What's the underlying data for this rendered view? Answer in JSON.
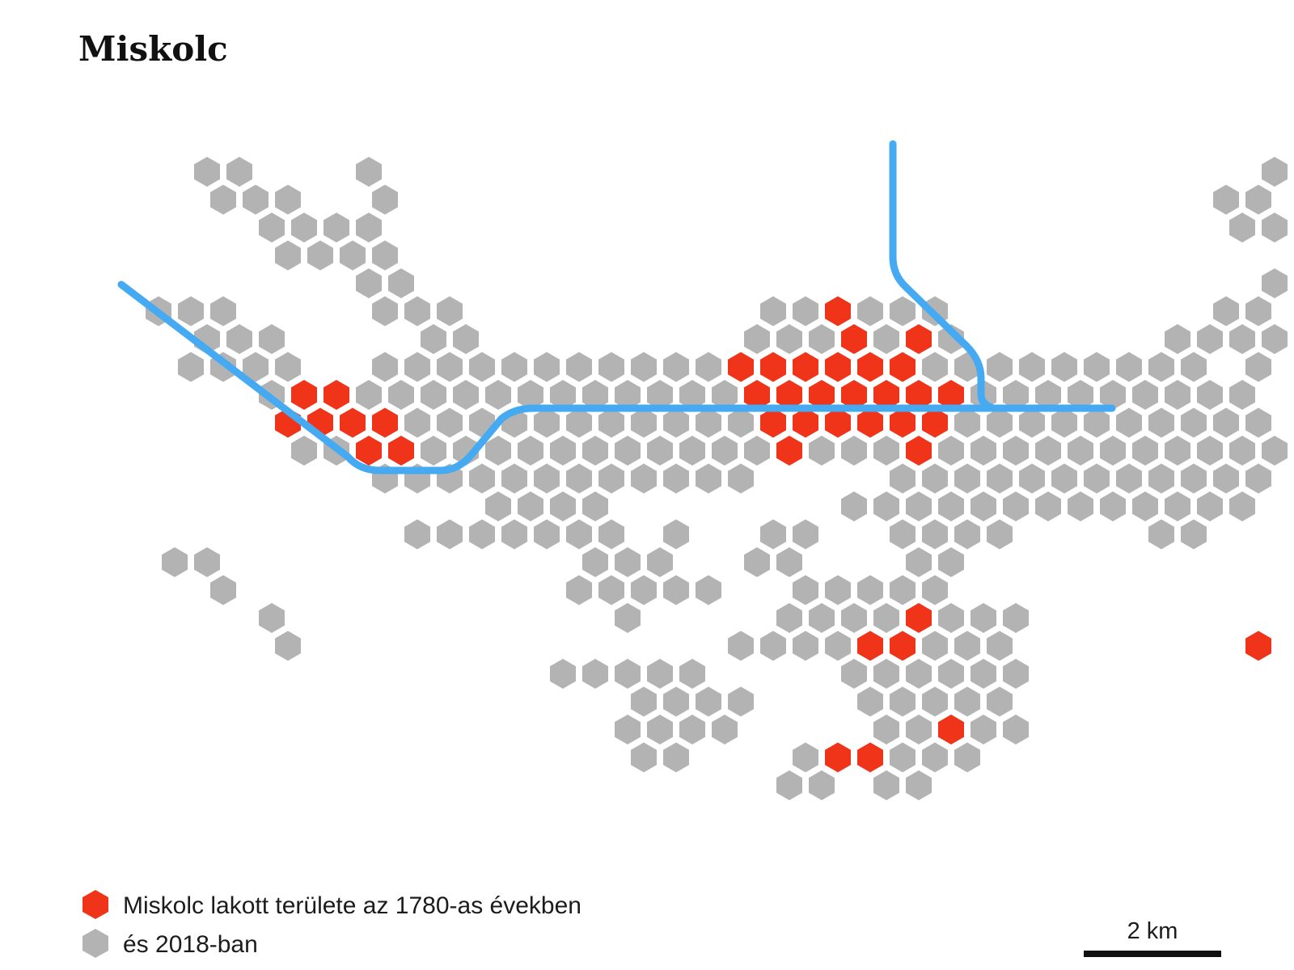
{
  "title": "Miskolc",
  "colors": {
    "historic": "#f03419",
    "modern": "#b3b3b3",
    "river": "#45aaf2",
    "text": "#1c1c1c"
  },
  "legend": [
    {
      "key": "historic",
      "label": "Miskolc lakott területe az 1780-as években"
    },
    {
      "key": "modern",
      "label": "és 2018-ban"
    }
  ],
  "scale": {
    "label": "2 km"
  },
  "rows": [
    "....................................................",
    "....................................................",
    "....................................................",
    "....................................................",
    "......................................GGG...........",
    "...GG...G...........................GGGG...........",
    "....GGG..G.........................GGGGG...........",
    ".....GGGG..........................GGGGGG...........",
    "......GGGG...........................GGGG...........",
    "........GG..........................GGGG............",
    "..GGG....GGG.........GGRGGG........GGGGG............",
    "...GGG....GG........GGGRGRG......GGGGGGGG.G.........",
    "...GGGG..GGGGGGGGGGGRRRRRRGGGGGGGGG.GG..............",
    ".....GRRGGGGGGGGGGGGRRRRRRRGGGGGGGGG................",
    "......RRRRGGGGGGGGGGGRRRRRRGGGGGGGGGGGG.............",
    "......GGRRGGGGGGGGGGGRGGGRGGGGGGGGGGG...............",
    ".........GGGGGGGGGGGG....GGGGGGGGGGGG...............",
    "............GGGG.......GGGGGGGGGGGGG..........G.....",
    "..........GGGGGGG.G..GG..GGGG....GG..........G......",
    "..GG...........GGG..GG...GG.........................",
    "....G..........GGGGG..GGGGG..........GG.............",
    ".....G..........G....GGGGRGGG........GGGG............",
    "......G.............GGGGRRGGG.......RGGGG...........",
    "....................................................",
    "....................................................",
    "....................................................",
    "....................................................",
    "...................................................."
  ],
  "lower_cluster": [
    "....................................................",
    "....................................................",
    "....................................................",
    "....................................................",
    "....................................................",
    "....................................................",
    "....................................................",
    "....................................................",
    "....................................................",
    "....................................................",
    "....................................................",
    "....................................................",
    "....................................................",
    "....................................................",
    "....................................................",
    "....................................................",
    "....................................................",
    "....................................................",
    "....................................................",
    "....................................................",
    "....................................................",
    "....................................................",
    "....................................................",
    "..............GGGGG....GGGGGG........RG.............",
    ".................GGGG...GGGGG........G..............",
    "................GGGG....GGRGG.......................",
    ".................GG...GRRGGG........................",
    ".....................GG.GG.........................."
  ]
}
